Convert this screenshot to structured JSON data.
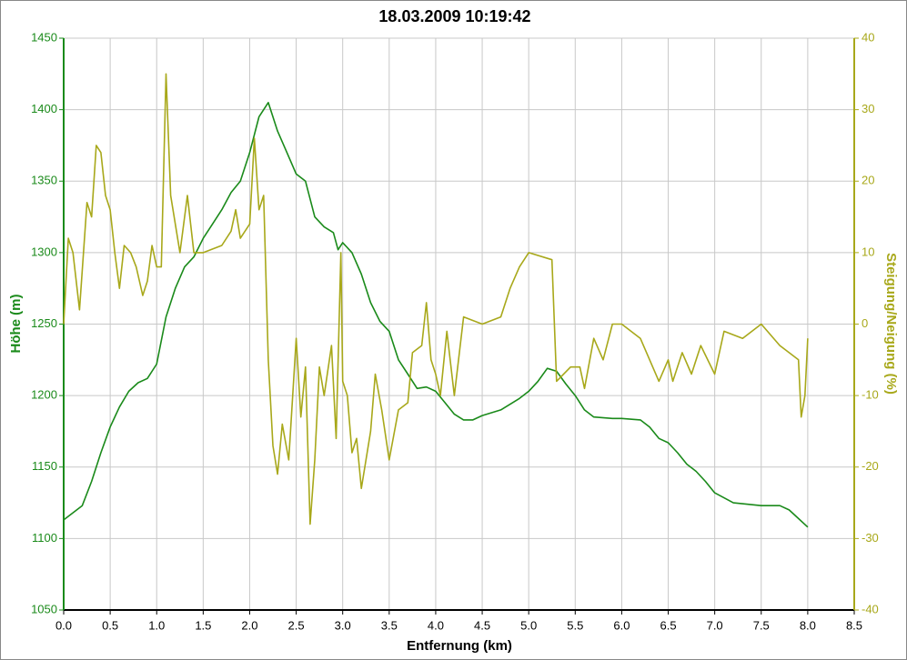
{
  "chart_data": {
    "type": "line",
    "title": "18.03.2009 10:19:42",
    "xlabel": "Entfernung (km)",
    "ylabel": "Höhe (m)",
    "y2label": "Steigung/Neigung (%)",
    "xlim": [
      0,
      8.5
    ],
    "xticks": [
      {
        "value": 0,
        "label": "0.0"
      },
      0.5,
      {
        "value": 1,
        "label": "1.0"
      },
      1.5,
      {
        "value": 2,
        "label": "2.0"
      },
      2.5,
      {
        "value": 3,
        "label": "3.0"
      },
      3.5,
      {
        "value": 4,
        "label": "4.0"
      },
      4.5,
      {
        "value": 5,
        "label": "5.0"
      },
      5.5,
      {
        "value": 6,
        "label": "6.0"
      },
      6.5,
      {
        "value": 7,
        "label": "7.0"
      },
      7.5,
      {
        "value": 8,
        "label": "8.0"
      },
      8.5
    ],
    "ylim": [
      1050,
      1450
    ],
    "yticks": [
      1050,
      1100,
      1150,
      1200,
      1250,
      1300,
      1350,
      1400,
      1450
    ],
    "y2lim": [
      -40,
      40
    ],
    "y2ticks": [
      -40,
      -30,
      -20,
      -10,
      0,
      10,
      20,
      30,
      40
    ],
    "grid": true,
    "ycolor": "#1a8a1a",
    "y2color": "#a8a81a",
    "series": [
      {
        "name": "Höhe",
        "color": "#1a8a1a",
        "axis": "y",
        "x": [
          0,
          0.2,
          0.3,
          0.4,
          0.5,
          0.6,
          0.7,
          0.8,
          0.9,
          1.0,
          1.1,
          1.2,
          1.3,
          1.4,
          1.5,
          1.6,
          1.7,
          1.8,
          1.9,
          2.0,
          2.1,
          2.2,
          2.3,
          2.4,
          2.5,
          2.6,
          2.7,
          2.8,
          2.9,
          2.95,
          3.0,
          3.1,
          3.2,
          3.3,
          3.4,
          3.5,
          3.6,
          3.7,
          3.8,
          3.9,
          4.0,
          4.1,
          4.2,
          4.3,
          4.4,
          4.5,
          4.7,
          4.9,
          5.0,
          5.1,
          5.2,
          5.3,
          5.4,
          5.5,
          5.6,
          5.7,
          5.9,
          6.0,
          6.2,
          6.3,
          6.4,
          6.5,
          6.6,
          6.7,
          6.8,
          6.9,
          7.0,
          7.2,
          7.5,
          7.7,
          7.8,
          7.9,
          8.0
        ],
        "values": [
          1113,
          1123,
          1140,
          1160,
          1178,
          1192,
          1203,
          1209,
          1212,
          1222,
          1255,
          1275,
          1290,
          1297,
          1310,
          1320,
          1330,
          1342,
          1350,
          1370,
          1395,
          1405,
          1385,
          1370,
          1355,
          1350,
          1325,
          1318,
          1314,
          1302,
          1307,
          1300,
          1285,
          1265,
          1252,
          1245,
          1225,
          1215,
          1205,
          1206,
          1203,
          1195,
          1187,
          1183,
          1183,
          1186,
          1190,
          1198,
          1203,
          1210,
          1219,
          1217,
          1208,
          1200,
          1190,
          1185,
          1184,
          1184,
          1183,
          1178,
          1170,
          1167,
          1160,
          1152,
          1147,
          1140,
          1132,
          1125,
          1123,
          1123,
          1120,
          1114,
          1108
        ]
      },
      {
        "name": "Steigung/Neigung",
        "color": "#a8a81a",
        "axis": "y2",
        "x": [
          0,
          0.05,
          0.1,
          0.17,
          0.25,
          0.3,
          0.35,
          0.4,
          0.45,
          0.5,
          0.55,
          0.6,
          0.65,
          0.72,
          0.78,
          0.85,
          0.9,
          0.95,
          1.0,
          1.05,
          1.1,
          1.15,
          1.25,
          1.33,
          1.4,
          1.5,
          1.7,
          1.8,
          1.85,
          1.9,
          2.0,
          2.05,
          2.1,
          2.15,
          2.2,
          2.25,
          2.3,
          2.35,
          2.42,
          2.5,
          2.55,
          2.6,
          2.65,
          2.7,
          2.75,
          2.8,
          2.88,
          2.93,
          2.98,
          3.0,
          3.05,
          3.1,
          3.15,
          3.2,
          3.3,
          3.35,
          3.42,
          3.5,
          3.6,
          3.7,
          3.75,
          3.85,
          3.9,
          3.95,
          4.0,
          4.05,
          4.12,
          4.2,
          4.3,
          4.5,
          4.7,
          4.8,
          4.9,
          5.0,
          5.25,
          5.3,
          5.45,
          5.55,
          5.6,
          5.7,
          5.8,
          5.9,
          6.0,
          6.2,
          6.4,
          6.5,
          6.55,
          6.65,
          6.75,
          6.85,
          7.0,
          7.1,
          7.3,
          7.5,
          7.7,
          7.8,
          7.9,
          7.93,
          7.97,
          8.0
        ],
        "values": [
          0,
          12,
          10,
          2,
          17,
          15,
          25,
          24,
          18,
          16,
          10,
          5,
          11,
          10,
          8,
          4,
          6,
          11,
          8,
          8,
          35,
          18,
          10,
          18,
          10,
          10,
          11,
          13,
          16,
          12,
          14,
          26,
          16,
          18,
          -5,
          -17,
          -21,
          -14,
          -19,
          -2,
          -13,
          -6,
          -28,
          -19,
          -6,
          -10,
          -3,
          -16,
          10,
          -8,
          -10,
          -18,
          -16,
          -23,
          -15,
          -7,
          -12,
          -19,
          -12,
          -11,
          -4,
          -3,
          3,
          -5,
          -7,
          -10,
          -1,
          -10,
          1,
          0,
          1,
          5,
          8,
          10,
          9,
          -8,
          -6,
          -6,
          -9,
          -2,
          -5,
          0,
          0,
          -2,
          -8,
          -5,
          -8,
          -4,
          -7,
          -3,
          -7,
          -1,
          -2,
          0,
          -3,
          -4,
          -5,
          -13,
          -10,
          -2
        ]
      }
    ]
  }
}
